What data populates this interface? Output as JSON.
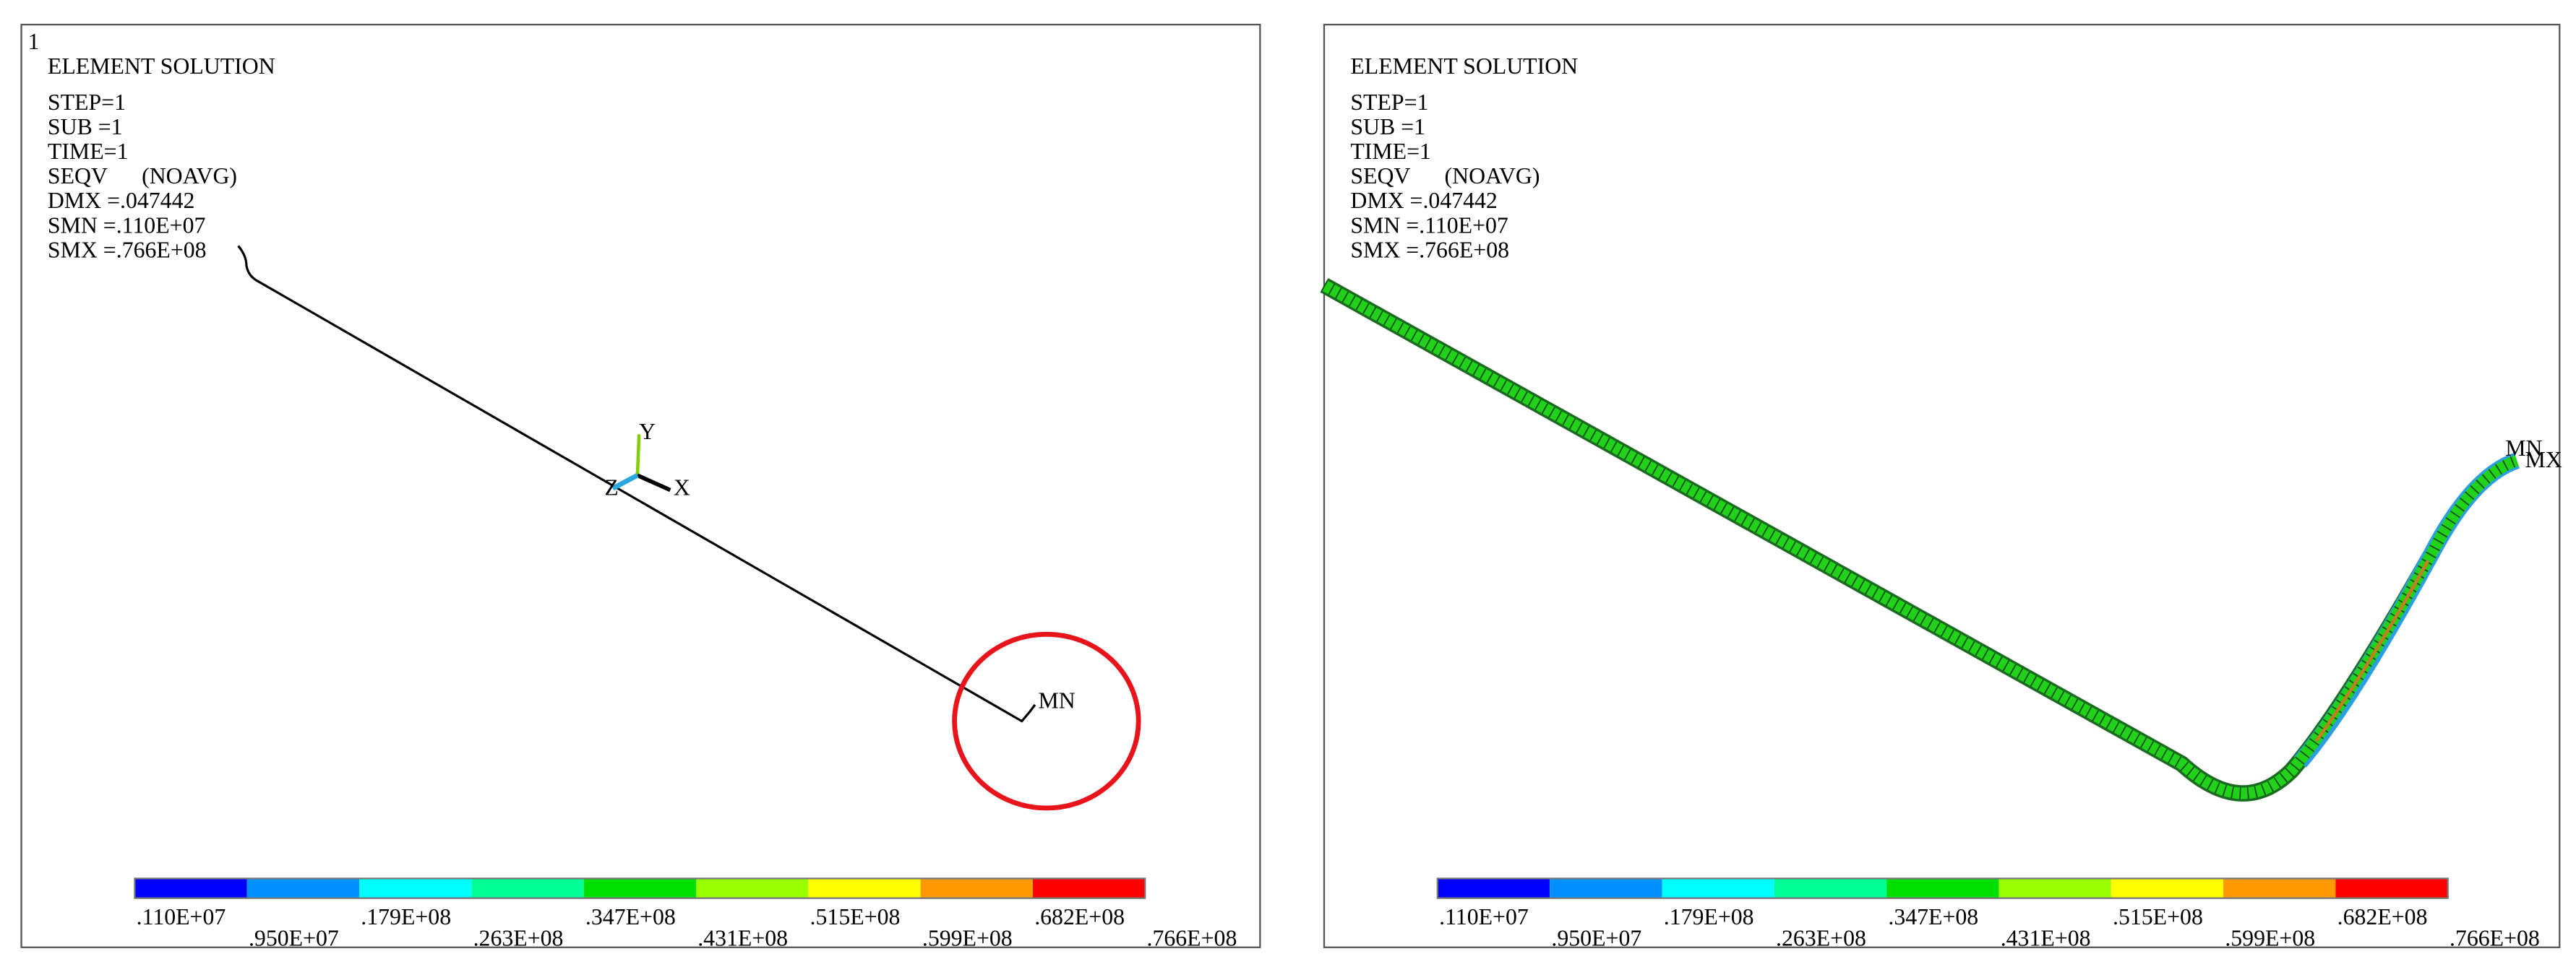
{
  "panels": [
    {
      "window_number": "1",
      "header": [
        "ELEMENT SOLUTION",
        "STEP=1",
        "SUB =1",
        "TIME=1",
        "SEQV      (NOAVG)",
        "DMX =.047442",
        "SMN =.110E+07",
        "SMX =.766E+08"
      ],
      "markers": [
        "MN"
      ],
      "triad": [
        "Y",
        "X",
        "Z"
      ],
      "legend": {
        "colors": [
          "#0000ff",
          "#0090ff",
          "#00ffff",
          "#00ff99",
          "#00e000",
          "#99ff00",
          "#ffff00",
          "#ff9900",
          "#ff0000"
        ],
        "labels": [
          ".110E+07",
          ".950E+07",
          ".179E+08",
          ".263E+08",
          ".347E+08",
          ".431E+08",
          ".515E+08",
          ".599E+08",
          ".682E+08",
          ".766E+08"
        ]
      }
    },
    {
      "header": [
        "ELEMENT SOLUTION",
        "STEP=1",
        "SUB =1",
        "TIME=1",
        "SEQV      (NOAVG)",
        "DMX =.047442",
        "SMN =.110E+07",
        "SMX =.766E+08"
      ],
      "markers": [
        "MN",
        "MX"
      ],
      "legend": {
        "colors": [
          "#0000ff",
          "#0090ff",
          "#00ffff",
          "#00ff99",
          "#00e000",
          "#99ff00",
          "#ffff00",
          "#ff9900",
          "#ff0000"
        ],
        "labels": [
          ".110E+07",
          ".950E+07",
          ".179E+08",
          ".263E+08",
          ".347E+08",
          ".431E+08",
          ".515E+08",
          ".599E+08",
          ".682E+08",
          ".766E+08"
        ]
      }
    }
  ]
}
